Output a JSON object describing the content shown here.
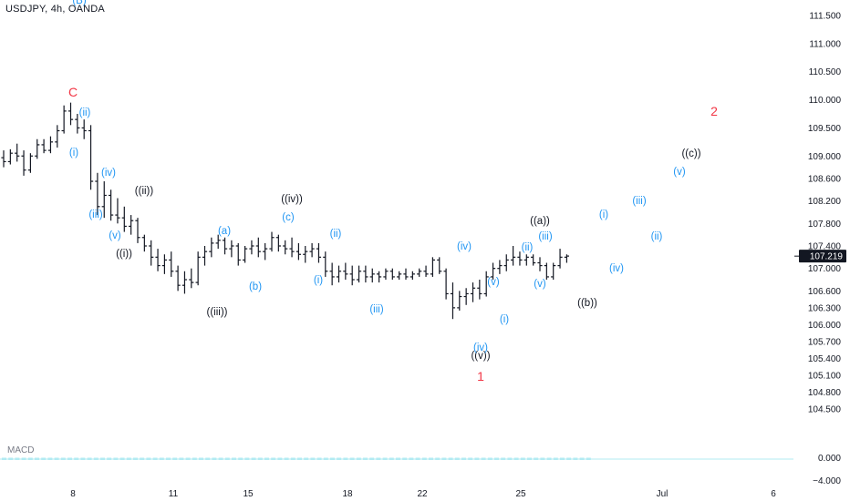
{
  "symbol_label": "USDJPY, 4h, OANDA",
  "indicator_label": "MACD",
  "colors": {
    "black": "#131722",
    "blue": "#2196f3",
    "red": "#f23645",
    "macd": "#26c6da"
  },
  "chart_data": {
    "type": "ohlc",
    "price_axis": [
      "111.500",
      "111.000",
      "110.500",
      "110.000",
      "109.500",
      "109.000",
      "108.600",
      "108.200",
      "107.800",
      "107.400",
      "107.000",
      "106.600",
      "106.300",
      "106.000",
      "105.700",
      "105.400",
      "105.100",
      "104.800",
      "104.500"
    ],
    "last_price": "107.219",
    "indicator_axis": [
      "0.000",
      "−4.000"
    ],
    "time_axis": [
      "8",
      "11",
      "15",
      "18",
      "22",
      "25",
      "Jul",
      "6"
    ],
    "bars": [
      [
        108.97,
        109.1,
        108.8,
        108.9
      ],
      [
        108.9,
        109.12,
        108.85,
        109.05
      ],
      [
        109.05,
        109.22,
        108.9,
        109.0
      ],
      [
        109.0,
        109.1,
        108.65,
        108.75
      ],
      [
        108.75,
        109.05,
        108.7,
        109.0
      ],
      [
        109.0,
        109.3,
        108.95,
        109.2
      ],
      [
        109.2,
        109.3,
        109.05,
        109.1
      ],
      [
        109.1,
        109.35,
        109.05,
        109.25
      ],
      [
        109.25,
        109.55,
        109.15,
        109.45
      ],
      [
        109.45,
        109.9,
        109.4,
        109.8
      ],
      [
        109.8,
        109.95,
        109.55,
        109.65
      ],
      [
        109.65,
        109.75,
        109.4,
        109.5
      ],
      [
        109.5,
        109.65,
        109.3,
        109.45
      ],
      [
        109.45,
        109.55,
        108.4,
        108.55
      ],
      [
        108.55,
        108.7,
        107.95,
        108.1
      ],
      [
        108.1,
        108.55,
        107.9,
        108.3
      ],
      [
        108.3,
        108.4,
        107.85,
        107.95
      ],
      [
        107.95,
        108.25,
        107.8,
        107.9
      ],
      [
        107.9,
        108.1,
        107.65,
        107.75
      ],
      [
        107.75,
        107.95,
        107.6,
        107.85
      ],
      [
        107.85,
        107.9,
        107.45,
        107.55
      ],
      [
        107.55,
        107.6,
        107.3,
        107.4
      ],
      [
        107.4,
        107.5,
        107.05,
        107.2
      ],
      [
        107.2,
        107.35,
        106.95,
        107.05
      ],
      [
        107.05,
        107.25,
        106.9,
        107.15
      ],
      [
        107.15,
        107.3,
        106.85,
        106.95
      ],
      [
        106.95,
        107.05,
        106.6,
        106.7
      ],
      [
        106.7,
        106.95,
        106.55,
        106.8
      ],
      [
        106.8,
        107.0,
        106.65,
        106.75
      ],
      [
        106.75,
        107.3,
        106.7,
        107.2
      ],
      [
        107.2,
        107.4,
        107.05,
        107.3
      ],
      [
        107.3,
        107.55,
        107.2,
        107.45
      ],
      [
        107.45,
        107.6,
        107.35,
        107.5
      ],
      [
        107.5,
        107.55,
        107.25,
        107.35
      ],
      [
        107.35,
        107.5,
        107.2,
        107.4
      ],
      [
        107.4,
        107.45,
        107.05,
        107.15
      ],
      [
        107.15,
        107.4,
        107.1,
        107.35
      ],
      [
        107.35,
        107.5,
        107.25,
        107.4
      ],
      [
        107.4,
        107.55,
        107.2,
        107.3
      ],
      [
        107.3,
        107.45,
        107.15,
        107.35
      ],
      [
        107.35,
        107.65,
        107.3,
        107.55
      ],
      [
        107.55,
        107.6,
        107.3,
        107.4
      ],
      [
        107.4,
        107.5,
        107.25,
        107.35
      ],
      [
        107.35,
        107.55,
        107.2,
        107.3
      ],
      [
        107.3,
        107.45,
        107.15,
        107.25
      ],
      [
        107.25,
        107.4,
        107.1,
        107.3
      ],
      [
        107.3,
        107.45,
        107.2,
        107.35
      ],
      [
        107.35,
        107.45,
        107.1,
        107.2
      ],
      [
        107.2,
        107.3,
        106.85,
        106.95
      ],
      [
        106.95,
        107.1,
        106.7,
        106.85
      ],
      [
        106.85,
        107.05,
        106.75,
        106.95
      ],
      [
        106.95,
        107.1,
        106.8,
        106.9
      ],
      [
        106.9,
        107.05,
        106.7,
        106.8
      ],
      [
        106.8,
        107.05,
        106.75,
        106.95
      ],
      [
        106.95,
        107.05,
        106.75,
        106.85
      ],
      [
        106.85,
        107.0,
        106.75,
        106.9
      ],
      [
        106.9,
        106.95,
        106.75,
        106.85
      ],
      [
        106.85,
        107.0,
        106.8,
        106.95
      ],
      [
        106.95,
        107.0,
        106.8,
        106.85
      ],
      [
        106.85,
        106.95,
        106.8,
        106.9
      ],
      [
        106.9,
        107.0,
        106.8,
        106.85
      ],
      [
        106.85,
        106.95,
        106.8,
        106.9
      ],
      [
        106.9,
        107.0,
        106.85,
        106.95
      ],
      [
        106.95,
        107.05,
        106.85,
        106.9
      ],
      [
        106.9,
        107.2,
        106.85,
        107.15
      ],
      [
        107.15,
        107.2,
        106.9,
        106.95
      ],
      [
        106.95,
        107.0,
        106.45,
        106.55
      ],
      [
        106.55,
        106.75,
        106.1,
        106.3
      ],
      [
        106.3,
        106.6,
        106.25,
        106.5
      ],
      [
        106.5,
        106.65,
        106.35,
        106.55
      ],
      [
        106.55,
        106.75,
        106.4,
        106.65
      ],
      [
        106.65,
        106.8,
        106.45,
        106.55
      ],
      [
        106.55,
        106.95,
        106.5,
        106.85
      ],
      [
        106.85,
        107.1,
        106.8,
        107.0
      ],
      [
        107.0,
        107.15,
        106.9,
        107.05
      ],
      [
        107.05,
        107.25,
        106.95,
        107.15
      ],
      [
        107.15,
        107.4,
        107.05,
        107.2
      ],
      [
        107.2,
        107.3,
        107.05,
        107.15
      ],
      [
        107.15,
        107.25,
        107.05,
        107.2
      ],
      [
        107.2,
        107.25,
        107.05,
        107.1
      ],
      [
        107.1,
        107.2,
        106.95,
        107.05
      ],
      [
        107.05,
        107.1,
        106.8,
        106.85
      ],
      [
        106.85,
        107.1,
        106.8,
        107.05
      ],
      [
        107.05,
        107.35,
        107.0,
        107.2
      ],
      [
        107.2,
        107.25,
        107.1,
        107.22
      ]
    ],
    "black_labels": [
      "((ii))",
      "((i))",
      "((iii))",
      "((iv))",
      "((v))",
      "((a))",
      "((b))",
      "((c))"
    ],
    "blue_labels": [
      "(B)",
      "(ii)",
      "(i)",
      "(iv)",
      "(iii)",
      "(v)",
      "(a)",
      "(b)",
      "(c)",
      "(ii)",
      "(i)",
      "(iii)",
      "(iv)",
      "(v)",
      "(i)",
      "(ii)",
      "(iii)",
      "(v)",
      "(iv)",
      "(i)",
      "(iii)",
      "(iv)",
      "(ii)",
      "(v)"
    ],
    "red_labels": [
      "C",
      "1",
      "2"
    ],
    "black_pos": [
      [
        158,
        213
      ],
      [
        136,
        282
      ],
      [
        238,
        346
      ],
      [
        320,
        222
      ],
      [
        527,
        394
      ],
      [
        592,
        246
      ],
      [
        644,
        336
      ],
      [
        758,
        172
      ]
    ],
    "blue_pos": [
      [
        87,
        4
      ],
      [
        93,
        127
      ],
      [
        81,
        171
      ],
      [
        119,
        193
      ],
      [
        105,
        239
      ],
      [
        126,
        262
      ],
      [
        246,
        257
      ],
      [
        280,
        318
      ],
      [
        316,
        242
      ],
      [
        368,
        260
      ],
      [
        349,
        311
      ],
      [
        413,
        343
      ],
      [
        509,
        274
      ],
      [
        541,
        313
      ],
      [
        553,
        354
      ],
      [
        578,
        275
      ],
      [
        598,
        263
      ],
      [
        592,
        315
      ],
      [
        527,
        385
      ],
      [
        662,
        239
      ],
      [
        701,
        224
      ],
      [
        676,
        298
      ],
      [
        720,
        263
      ],
      [
        745,
        192
      ]
    ],
    "red_pos": [
      [
        80,
        106
      ],
      [
        527,
        418
      ],
      [
        783,
        127
      ]
    ]
  }
}
